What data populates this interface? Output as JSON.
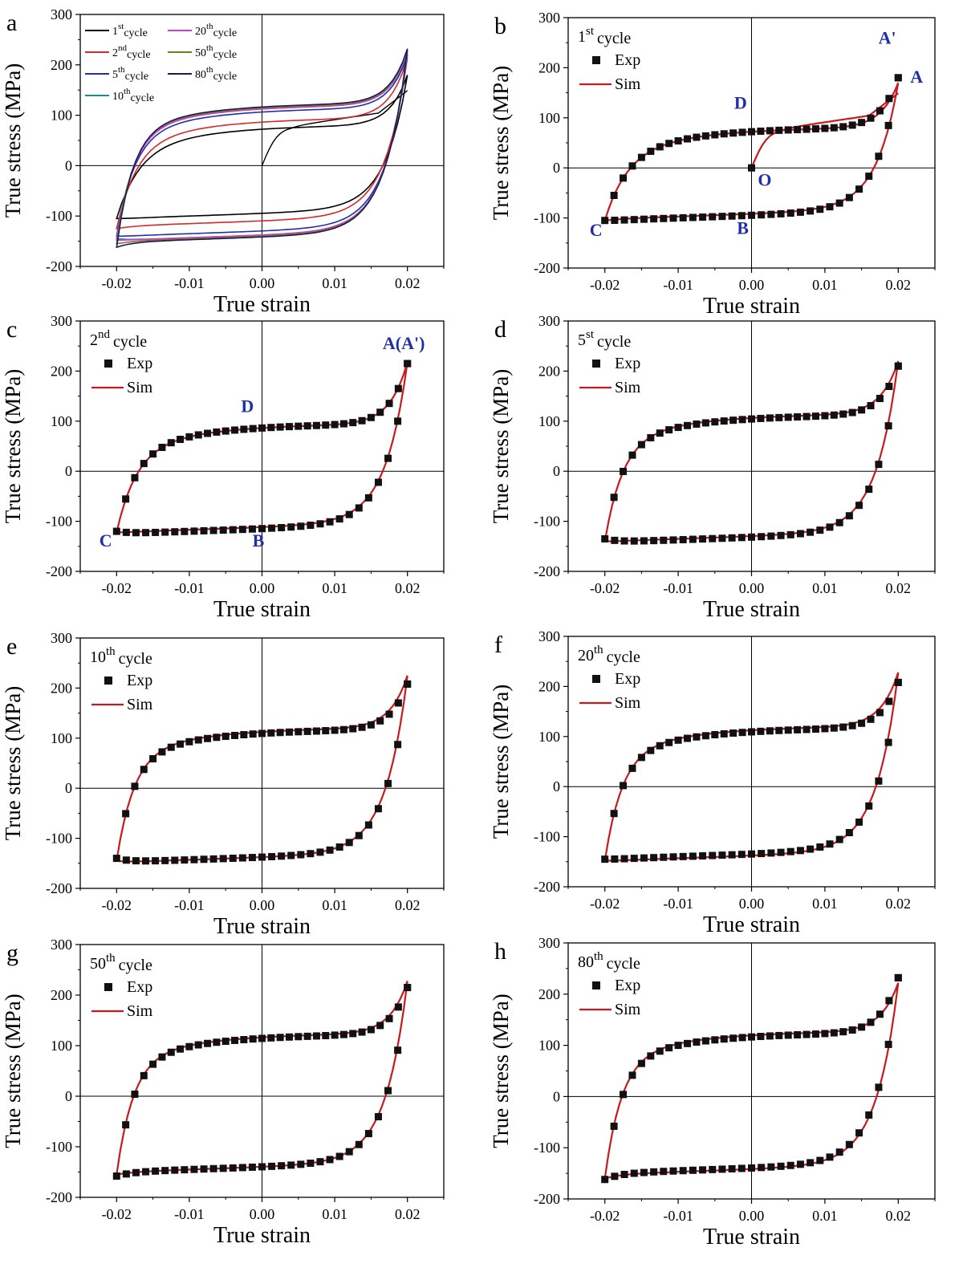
{
  "figure": {
    "panels": [
      {
        "letter": "a",
        "cycle_num": "",
        "cycle_sup": "",
        "cycle_word": "",
        "legend": [
          {
            "num": "1",
            "sup": "st",
            "word": "cycle",
            "color": "#000000"
          },
          {
            "num": "2",
            "sup": "nd",
            "word": "cycle",
            "color": "#d42a2a"
          },
          {
            "num": "5",
            "sup": "th",
            "word": "cycle",
            "color": "#1f2fae"
          },
          {
            "num": "10",
            "sup": "th",
            "word": "cycle",
            "color": "#1e8a8a"
          },
          {
            "num": "20",
            "sup": "th",
            "word": "cycle",
            "color": "#d63ad6"
          },
          {
            "num": "50",
            "sup": "th",
            "word": "cycle",
            "color": "#7a7a1a"
          },
          {
            "num": "80",
            "sup": "th",
            "word": "cycle",
            "color": "#1a1a5e"
          }
        ],
        "point_labels": []
      },
      {
        "letter": "b",
        "cycle_num": "1",
        "cycle_sup": "st",
        "cycle_word": "cycle",
        "exp_label": "Exp",
        "sim_label": "Sim",
        "point_labels": [
          {
            "text": "A'",
            "x": 0.0185,
            "y": 248
          },
          {
            "text": "A",
            "x": 0.0225,
            "y": 170
          },
          {
            "text": "D",
            "x": -0.0015,
            "y": 118
          },
          {
            "text": "O",
            "x": 0.0018,
            "y": -36
          },
          {
            "text": "B",
            "x": -0.0012,
            "y": -132
          },
          {
            "text": "C",
            "x": -0.0212,
            "y": -136
          }
        ]
      },
      {
        "letter": "c",
        "cycle_num": "2",
        "cycle_sup": "nd",
        "cycle_word": "cycle",
        "exp_label": "Exp",
        "sim_label": "Sim",
        "point_labels": [
          {
            "text": "A(A')",
            "x": 0.0195,
            "y": 244
          },
          {
            "text": "D",
            "x": -0.002,
            "y": 118
          },
          {
            "text": "C",
            "x": -0.0215,
            "y": -150
          },
          {
            "text": "B",
            "x": -0.0005,
            "y": -150
          }
        ]
      },
      {
        "letter": "d",
        "cycle_num": "5",
        "cycle_sup": "st",
        "cycle_word": "cycle",
        "exp_label": "Exp",
        "sim_label": "Sim",
        "point_labels": []
      },
      {
        "letter": "e",
        "cycle_num": "10",
        "cycle_sup": "th",
        "cycle_word": "cycle",
        "exp_label": "Exp",
        "sim_label": "Sim",
        "point_labels": []
      },
      {
        "letter": "f",
        "cycle_num": "20",
        "cycle_sup": "th",
        "cycle_word": "cycle",
        "exp_label": "Exp",
        "sim_label": "Sim",
        "point_labels": []
      },
      {
        "letter": "g",
        "cycle_num": "50",
        "cycle_sup": "th",
        "cycle_word": "cycle",
        "exp_label": "Exp",
        "sim_label": "Sim",
        "point_labels": []
      },
      {
        "letter": "h",
        "cycle_num": "80",
        "cycle_sup": "th",
        "cycle_word": "cycle",
        "exp_label": "Exp",
        "sim_label": "Sim",
        "point_labels": []
      }
    ]
  },
  "chart_data": [
    {
      "id": "a",
      "type": "line",
      "xlabel": "True strain",
      "ylabel": "True stress (MPa)",
      "xlim": [
        -0.025,
        0.025
      ],
      "ylim": [
        -200,
        300
      ],
      "xticks": [
        "-0.02",
        "-0.01",
        "0.00",
        "0.01",
        "0.02"
      ],
      "yticks": [
        "-200",
        "-100",
        "0",
        "100",
        "200",
        "300"
      ],
      "series": [
        {
          "name": "1st cycle",
          "color": "#000000",
          "fwd": {
            "top": 180,
            "plateau": 78,
            "s": 0.45,
            "start": -105
          },
          "rev": {
            "low": -105,
            "plateau": -85,
            "s": 0.35
          },
          "initial": true
        },
        {
          "name": "2nd cycle",
          "color": "#d42a2a",
          "fwd": {
            "top": 215,
            "plateau": 92,
            "s": 0.6,
            "start": -125
          },
          "rev": {
            "low": -125,
            "plateau": -100,
            "s": 0.4
          }
        },
        {
          "name": "5th cycle",
          "color": "#1f2fae",
          "fwd": {
            "top": 220,
            "plateau": 112,
            "s": 0.75,
            "start": -140
          },
          "rev": {
            "low": -140,
            "plateau": -120,
            "s": 0.45
          }
        },
        {
          "name": "10th cycle",
          "color": "#1e8a8a",
          "fwd": {
            "top": 225,
            "plateau": 118,
            "s": 0.8,
            "start": -145
          },
          "rev": {
            "low": -145,
            "plateau": -128,
            "s": 0.45
          }
        },
        {
          "name": "20th cycle",
          "color": "#d63ad6",
          "fwd": {
            "top": 228,
            "plateau": 118,
            "s": 0.8,
            "start": -148
          },
          "rev": {
            "low": -148,
            "plateau": -128,
            "s": 0.45
          }
        },
        {
          "name": "50th cycle",
          "color": "#7a7a1a",
          "fwd": {
            "top": 230,
            "plateau": 120,
            "s": 0.85,
            "start": -155
          },
          "rev": {
            "low": -155,
            "plateau": -130,
            "s": 0.45
          }
        },
        {
          "name": "80th cycle",
          "color": "#1a1a5e",
          "fwd": {
            "top": 232,
            "plateau": 122,
            "s": 0.85,
            "start": -162
          },
          "rev": {
            "low": -162,
            "plateau": -132,
            "s": 0.45
          }
        }
      ]
    },
    {
      "id": "b",
      "type": "scatter",
      "cycle": "1st cycle",
      "xlabel": "True strain",
      "ylabel": "True stress (MPa)",
      "xlim": [
        -0.025,
        0.025
      ],
      "ylim": [
        -200,
        300
      ],
      "xticks": [
        "-0.02",
        "-0.01",
        "0.00",
        "0.01",
        "0.02"
      ],
      "yticks": [
        "-200",
        "-100",
        "0",
        "100",
        "200",
        "300"
      ],
      "sim": {
        "fwd": {
          "top": 170,
          "plateau": 78,
          "s": 0.45,
          "start": -105
        },
        "rev": {
          "low": -105,
          "plateau": -82,
          "s": 0.35
        },
        "initial": true
      },
      "exp": {
        "fwd": {
          "top": 180,
          "plateau": 78,
          "s": 0.45,
          "start": -105
        },
        "rev": {
          "low": -105,
          "plateau": -85,
          "s": 0.35
        },
        "initial": true
      }
    },
    {
      "id": "c",
      "type": "scatter",
      "cycle": "2nd cycle",
      "xlabel": "True strain",
      "ylabel": "True stress (MPa)",
      "xlim": [
        -0.025,
        0.025
      ],
      "ylim": [
        -200,
        300
      ],
      "xticks": [
        "-0.02",
        "-0.01",
        "0.00",
        "0.01",
        "0.02"
      ],
      "yticks": [
        "-200",
        "-100",
        "0",
        "100",
        "200",
        "300"
      ],
      "sim": {
        "fwd": {
          "top": 218,
          "plateau": 92,
          "s": 0.6,
          "start": -122
        },
        "rev": {
          "low": -122,
          "plateau": -102,
          "s": 0.4
        }
      },
      "exp": {
        "fwd": {
          "top": 215,
          "plateau": 92,
          "s": 0.6,
          "start": -120
        },
        "rev": {
          "low": -120,
          "plateau": -105,
          "s": 0.4
        }
      }
    },
    {
      "id": "d",
      "type": "scatter",
      "cycle": "5st cycle",
      "xlabel": "True strain",
      "ylabel": "True stress (MPa)",
      "xlim": [
        -0.025,
        0.025
      ],
      "ylim": [
        -200,
        300
      ],
      "xticks": [
        "-0.02",
        "-0.01",
        "0.00",
        "0.01",
        "0.02"
      ],
      "yticks": [
        "-200",
        "-100",
        "0",
        "100",
        "200",
        "300"
      ],
      "sim": {
        "fwd": {
          "top": 220,
          "plateau": 112,
          "s": 0.75,
          "start": -140
        },
        "rev": {
          "low": -140,
          "plateau": -120,
          "s": 0.45
        }
      },
      "exp": {
        "fwd": {
          "top": 210,
          "plateau": 110,
          "s": 0.75,
          "start": -135
        },
        "rev": {
          "low": -135,
          "plateau": -122,
          "s": 0.45
        }
      }
    },
    {
      "id": "e",
      "type": "scatter",
      "cycle": "10th cycle",
      "xlabel": "True strain",
      "ylabel": "True stress (MPa)",
      "xlim": [
        -0.025,
        0.025
      ],
      "ylim": [
        -200,
        300
      ],
      "xticks": [
        "-0.02",
        "-0.01",
        "0.00",
        "0.01",
        "0.02"
      ],
      "yticks": [
        "-200",
        "-100",
        "0",
        "100",
        "200",
        "300"
      ],
      "sim": {
        "fwd": {
          "top": 225,
          "plateau": 118,
          "s": 0.8,
          "start": -145
        },
        "rev": {
          "low": -145,
          "plateau": -128,
          "s": 0.45
        }
      },
      "exp": {
        "fwd": {
          "top": 208,
          "plateau": 115,
          "s": 0.8,
          "start": -140
        },
        "rev": {
          "low": -140,
          "plateau": -128,
          "s": 0.45
        }
      }
    },
    {
      "id": "f",
      "type": "scatter",
      "cycle": "20th cycle",
      "xlabel": "True strain",
      "ylabel": "True stress (MPa)",
      "xlim": [
        -0.025,
        0.025
      ],
      "ylim": [
        -200,
        300
      ],
      "xticks": [
        "-0.02",
        "-0.01",
        "0.00",
        "0.01",
        "0.02"
      ],
      "yticks": [
        "-200",
        "-100",
        "0",
        "100",
        "200",
        "300"
      ],
      "sim": {
        "fwd": {
          "top": 228,
          "plateau": 118,
          "s": 0.8,
          "start": -148
        },
        "rev": {
          "low": -148,
          "plateau": -128,
          "s": 0.45
        }
      },
      "exp": {
        "fwd": {
          "top": 208,
          "plateau": 115,
          "s": 0.8,
          "start": -145
        },
        "rev": {
          "low": -145,
          "plateau": -125,
          "s": 0.45
        }
      }
    },
    {
      "id": "g",
      "type": "scatter",
      "cycle": "50th cycle",
      "xlabel": "True strain",
      "ylabel": "True stress (MPa)",
      "xlim": [
        -0.025,
        0.025
      ],
      "ylim": [
        -200,
        300
      ],
      "xticks": [
        "-0.02",
        "-0.01",
        "0.00",
        "0.01",
        "0.02"
      ],
      "yticks": [
        "-200",
        "-100",
        "0",
        "100",
        "200",
        "300"
      ],
      "sim": {
        "fwd": {
          "top": 228,
          "plateau": 122,
          "s": 0.85,
          "start": -155
        },
        "rev": {
          "low": -155,
          "plateau": -130,
          "s": 0.45
        }
      },
      "exp": {
        "fwd": {
          "top": 215,
          "plateau": 120,
          "s": 0.85,
          "start": -158
        },
        "rev": {
          "low": -158,
          "plateau": -130,
          "s": 0.45
        }
      }
    },
    {
      "id": "h",
      "type": "scatter",
      "cycle": "80th cycle",
      "xlabel": "True strain",
      "ylabel": "True stress (MPa)",
      "xlim": [
        -0.025,
        0.025
      ],
      "ylim": [
        -200,
        300
      ],
      "xticks": [
        "-0.02",
        "-0.01",
        "0.00",
        "0.01",
        "0.02"
      ],
      "yticks": [
        "-200",
        "-100",
        "0",
        "100",
        "200",
        "300"
      ],
      "sim": {
        "fwd": {
          "top": 222,
          "plateau": 125,
          "s": 0.85,
          "start": -160
        },
        "rev": {
          "low": -160,
          "plateau": -132,
          "s": 0.45
        }
      },
      "exp": {
        "fwd": {
          "top": 232,
          "plateau": 122,
          "s": 0.85,
          "start": -162
        },
        "rev": {
          "low": -162,
          "plateau": -130,
          "s": 0.45
        }
      }
    }
  ]
}
